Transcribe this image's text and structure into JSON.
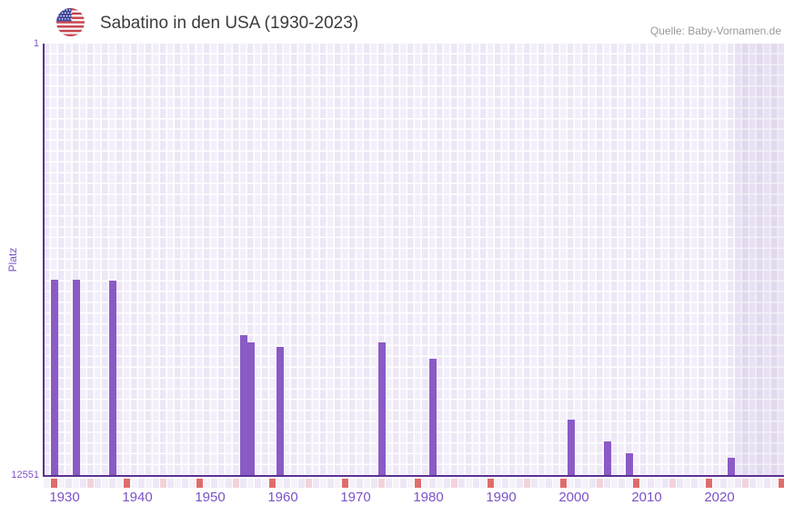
{
  "header": {
    "title": "Sabatino in den USA (1930-2023)",
    "source": "Quelle: Baby-Vornamen.de",
    "flag_icon": "us-flag-icon"
  },
  "colors": {
    "bar": "#8A5BC5",
    "axis_line": "#5B3193",
    "tick_text": "#7C52C6",
    "title_text": "#3C3C3C",
    "source_text": "#999999",
    "grid_cell_dark": "#EDE7F6",
    "grid_cell_light": "#F5F2FA",
    "marker_red": "#E06C6C",
    "marker_pink": "#F3D3DA",
    "flag_stripe_red": "#C8414B",
    "flag_canton_blue": "#41479B"
  },
  "chart_data": {
    "type": "bar",
    "title": "Sabatino in den USA (1930-2023)",
    "xlabel": "",
    "ylabel": "Platz",
    "source": "Quelle: Baby-Vornamen.de",
    "y_axis": {
      "label_top": "1",
      "label_bottom": "12551",
      "min": 1,
      "max": 12551,
      "inverted": true,
      "meaning": "rank (Platz), 1 = best, bars grow upward from 12551 toward rank"
    },
    "x_axis": {
      "ticks": [
        1930,
        1940,
        1950,
        1960,
        1970,
        1980,
        1990,
        2000,
        2010,
        2020
      ],
      "range_start": 1929,
      "range_end": 2030,
      "data_start": 1930,
      "data_end": 2023,
      "decade_marker": "red",
      "half_decade_marker": "pink",
      "no_data_band_start": 2023.5
    },
    "series": [
      {
        "name": "Platz",
        "points": [
          {
            "year": 1930,
            "rank": 6870
          },
          {
            "year": 1933,
            "rank": 6870
          },
          {
            "year": 1938,
            "rank": 6900
          },
          {
            "year": 1956,
            "rank": 8490
          },
          {
            "year": 1957,
            "rank": 8700
          },
          {
            "year": 1961,
            "rank": 8830
          },
          {
            "year": 1975,
            "rank": 8690
          },
          {
            "year": 1982,
            "rank": 9170
          },
          {
            "year": 2001,
            "rank": 10930
          },
          {
            "year": 2006,
            "rank": 11570
          },
          {
            "year": 2009,
            "rank": 11910
          },
          {
            "year": 2023,
            "rank": 12040
          }
        ]
      }
    ],
    "legend": null,
    "grid": true
  }
}
